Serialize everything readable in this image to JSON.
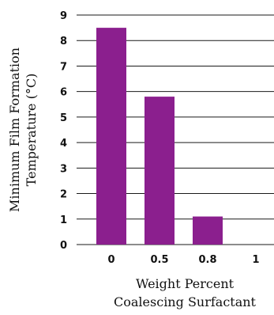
{
  "chart_data": {
    "type": "bar",
    "categories": [
      "0",
      "0.5",
      "0.8",
      "1"
    ],
    "values": [
      8.5,
      5.8,
      1.1,
      0
    ],
    "xlabel": [
      "Weight Percent",
      "Coalescing Surfactant"
    ],
    "ylabel": [
      "Minimum Film Formation",
      "Temperature (°C)"
    ],
    "yticks": [
      "0",
      "1",
      "2",
      "3",
      "4",
      "5",
      "6",
      "7",
      "8",
      "9"
    ],
    "ylim": [
      0,
      9
    ],
    "grid": true,
    "bar_color": "#8b1f8e"
  }
}
